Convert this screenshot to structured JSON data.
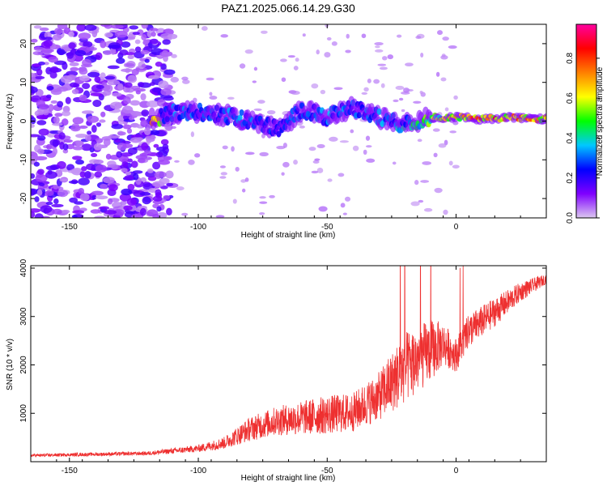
{
  "title": "PAZ1.2025.066.14.29.G30",
  "chart_data": [
    {
      "type": "heatmap",
      "xlabel": "Height of straight line (km)",
      "ylabel": "Frequency (Hz)",
      "xlim": [
        -165,
        35
      ],
      "ylim": [
        -25,
        25
      ],
      "x_ticks": [
        -150,
        -100,
        -50,
        0
      ],
      "y_ticks": [
        -20,
        -10,
        0,
        10,
        20
      ],
      "x_tick_labels": [
        "-150",
        "-100",
        "-50",
        "0"
      ],
      "y_tick_labels": [
        "-20",
        "-10",
        "0",
        "10",
        "20"
      ],
      "colorbar": {
        "label": "Normalized spectral amplitude",
        "range": [
          0,
          0.97
        ],
        "ticks": [
          0.0,
          0.2,
          0.4,
          0.6,
          0.8
        ],
        "tick_labels": [
          "0.0",
          "0.2",
          "0.4",
          "0.6",
          "0.8"
        ],
        "colormap": [
          "#dcc8f0",
          "#7f00ff",
          "#0000ff",
          "#00c8ff",
          "#00ff00",
          "#ffff00",
          "#ff8000",
          "#ff0000",
          "#ff00a0"
        ]
      },
      "ridge": [
        {
          "x": -115,
          "f": 1.5,
          "a": 0.3
        },
        {
          "x": -105,
          "f": 2.5,
          "a": 0.35
        },
        {
          "x": -95,
          "f": 2.0,
          "a": 0.3
        },
        {
          "x": -85,
          "f": 1.0,
          "a": 0.35
        },
        {
          "x": -75,
          "f": -1.0,
          "a": 0.3
        },
        {
          "x": -68,
          "f": -2.0,
          "a": 0.25
        },
        {
          "x": -60,
          "f": 3.0,
          "a": 0.35
        },
        {
          "x": -50,
          "f": 1.0,
          "a": 0.35
        },
        {
          "x": -40,
          "f": 3.5,
          "a": 0.3
        },
        {
          "x": -30,
          "f": 1.0,
          "a": 0.35
        },
        {
          "x": -20,
          "f": -1.0,
          "a": 0.4
        },
        {
          "x": -10,
          "f": 1.0,
          "a": 0.55
        },
        {
          "x": 0,
          "f": 1.0,
          "a": 0.7
        },
        {
          "x": 10,
          "f": 0.5,
          "a": 0.9
        },
        {
          "x": 20,
          "f": 1.0,
          "a": 0.8
        },
        {
          "x": 30,
          "f": 0.5,
          "a": 0.75
        },
        {
          "x": 35,
          "f": 0.5,
          "a": 0.7
        }
      ]
    },
    {
      "type": "line",
      "xlabel": "Height of straight line (km)",
      "ylabel": "SNR (10 * v/v)",
      "xlim": [
        -165,
        35
      ],
      "ylim": [
        0,
        4050
      ],
      "x_ticks": [
        -150,
        -100,
        -50,
        0
      ],
      "y_ticks": [
        1000,
        2000,
        3000,
        4000
      ],
      "x_tick_labels": [
        "-150",
        "-100",
        "-50",
        "0"
      ],
      "y_tick_labels": [
        "1000",
        "2000",
        "3000",
        "4000"
      ],
      "line_color": "#ee3030",
      "envelope": [
        {
          "x": -165,
          "base": 120,
          "spread": 60
        },
        {
          "x": -120,
          "base": 160,
          "spread": 80
        },
        {
          "x": -100,
          "base": 250,
          "spread": 150
        },
        {
          "x": -90,
          "base": 350,
          "spread": 250
        },
        {
          "x": -80,
          "base": 600,
          "spread": 500
        },
        {
          "x": -70,
          "base": 750,
          "spread": 600
        },
        {
          "x": -60,
          "base": 800,
          "spread": 700
        },
        {
          "x": -50,
          "base": 850,
          "spread": 800
        },
        {
          "x": -40,
          "base": 900,
          "spread": 800
        },
        {
          "x": -30,
          "base": 1200,
          "spread": 1000
        },
        {
          "x": -20,
          "base": 1700,
          "spread": 1500
        },
        {
          "x": -10,
          "base": 2100,
          "spread": 1300
        },
        {
          "x": -5,
          "base": 2300,
          "spread": 900
        },
        {
          "x": 0,
          "base": 2100,
          "spread": 700
        },
        {
          "x": 5,
          "base": 2600,
          "spread": 700
        },
        {
          "x": 15,
          "base": 3000,
          "spread": 600
        },
        {
          "x": 25,
          "base": 3450,
          "spread": 400
        },
        {
          "x": 35,
          "base": 3750,
          "spread": 200
        }
      ]
    }
  ]
}
